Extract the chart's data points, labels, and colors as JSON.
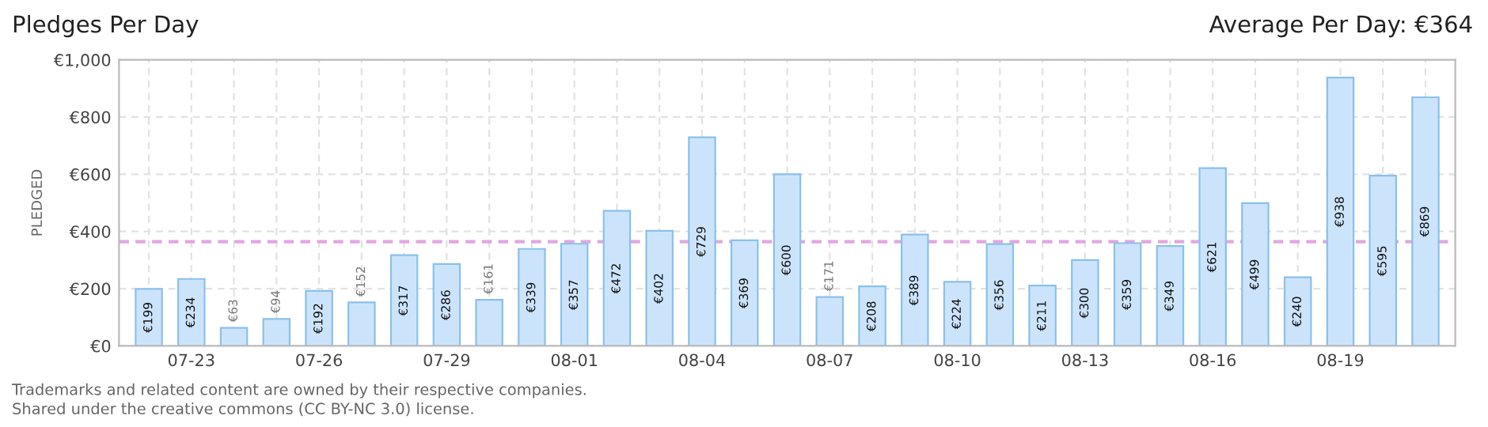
{
  "chart_data": {
    "type": "bar",
    "title": "Pledges Per Day",
    "ylabel": "PLEDGED",
    "categories": [
      null,
      "07-23",
      null,
      null,
      "07-26",
      null,
      null,
      "07-29",
      null,
      null,
      "08-01",
      null,
      null,
      "08-04",
      null,
      null,
      "08-07",
      null,
      null,
      "08-10",
      null,
      null,
      "08-13",
      null,
      null,
      "08-16",
      null,
      null,
      "08-19",
      null,
      null
    ],
    "values": [
      199,
      234,
      63,
      94,
      192,
      152,
      317,
      286,
      161,
      339,
      357,
      472,
      402,
      729,
      369,
      600,
      171,
      208,
      389,
      224,
      356,
      211,
      300,
      359,
      349,
      621,
      499,
      240,
      938,
      595,
      869
    ],
    "value_labels": [
      "€199",
      "€234",
      "€63",
      "€94",
      "€192",
      "€152",
      "€317",
      "€286",
      "€161",
      "€339",
      "€357",
      "€472",
      "€402",
      "€729",
      "€369",
      "€600",
      "€171",
      "€208",
      "€389",
      "€224",
      "€356",
      "€211",
      "€300",
      "€359",
      "€349",
      "€621",
      "€499",
      "€240",
      "€938",
      "€595",
      "€869"
    ],
    "color": "#cce4fb",
    "ylim": [
      0,
      1000
    ],
    "yticks": [
      {
        "value": 0,
        "label": "€0"
      },
      {
        "value": 200,
        "label": "€200"
      },
      {
        "value": 400,
        "label": "€400"
      },
      {
        "value": 600,
        "label": "€600"
      },
      {
        "value": 800,
        "label": "€800"
      },
      {
        "value": 1000,
        "label": "€1,000"
      }
    ],
    "ref_lines": [
      {
        "axis": "y",
        "value": 364,
        "color": "#e0a8e0",
        "line_style": "dashed"
      }
    ],
    "subtitle": "Average Per Day: €364",
    "grid": true,
    "annotations": [
      "Trademarks and related content are owned by their respective companies.",
      "Shared under the creative commons (CC BY-NC 3.0) license."
    ]
  }
}
